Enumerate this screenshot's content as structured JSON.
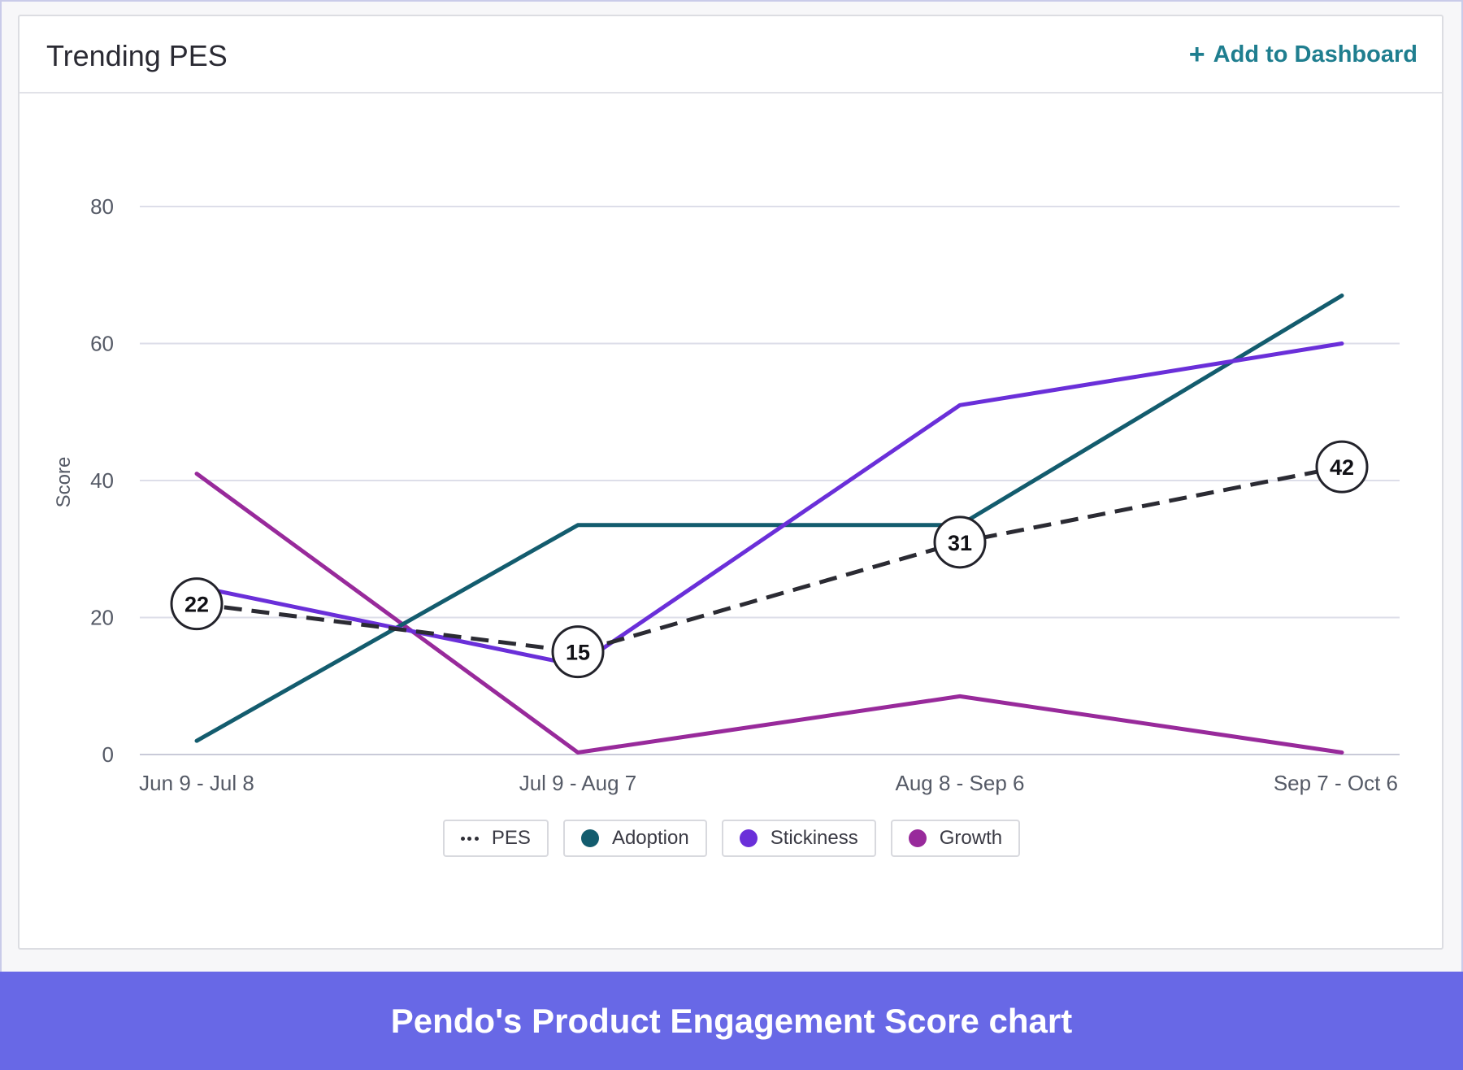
{
  "card": {
    "title": "Trending PES",
    "add_button": {
      "icon": "plus-icon",
      "label": "Add to Dashboard"
    }
  },
  "colors": {
    "PES": "#2b2b33",
    "Adoption": "#135c6e",
    "Stickiness": "#6a2fd9",
    "Growth": "#982a9b",
    "accent": "#1f7e8f",
    "caption_bar": "#6868e6"
  },
  "chart_data": {
    "type": "line",
    "title": "Trending PES",
    "xlabel": "",
    "ylabel": "Score",
    "ylim": [
      0,
      80
    ],
    "yticks": [
      0,
      20,
      40,
      60,
      80
    ],
    "grid": true,
    "legend_position": "bottom",
    "categories": [
      "Jun 9 - Jul 8",
      "Jul 9 - Aug 7",
      "Aug 8 - Sep 6",
      "Sep 7 - Oct 6"
    ],
    "series": [
      {
        "name": "PES",
        "style": "dashed",
        "labeled": true,
        "values": [
          22,
          15,
          31,
          42
        ]
      },
      {
        "name": "Adoption",
        "values": [
          2,
          33.5,
          33.5,
          67
        ]
      },
      {
        "name": "Stickiness",
        "values": [
          24.5,
          13,
          51,
          60
        ]
      },
      {
        "name": "Growth",
        "values": [
          41,
          0.3,
          8.5,
          0.3
        ]
      }
    ]
  },
  "footer": {
    "caption": "Pendo's Product Engagement Score chart"
  }
}
